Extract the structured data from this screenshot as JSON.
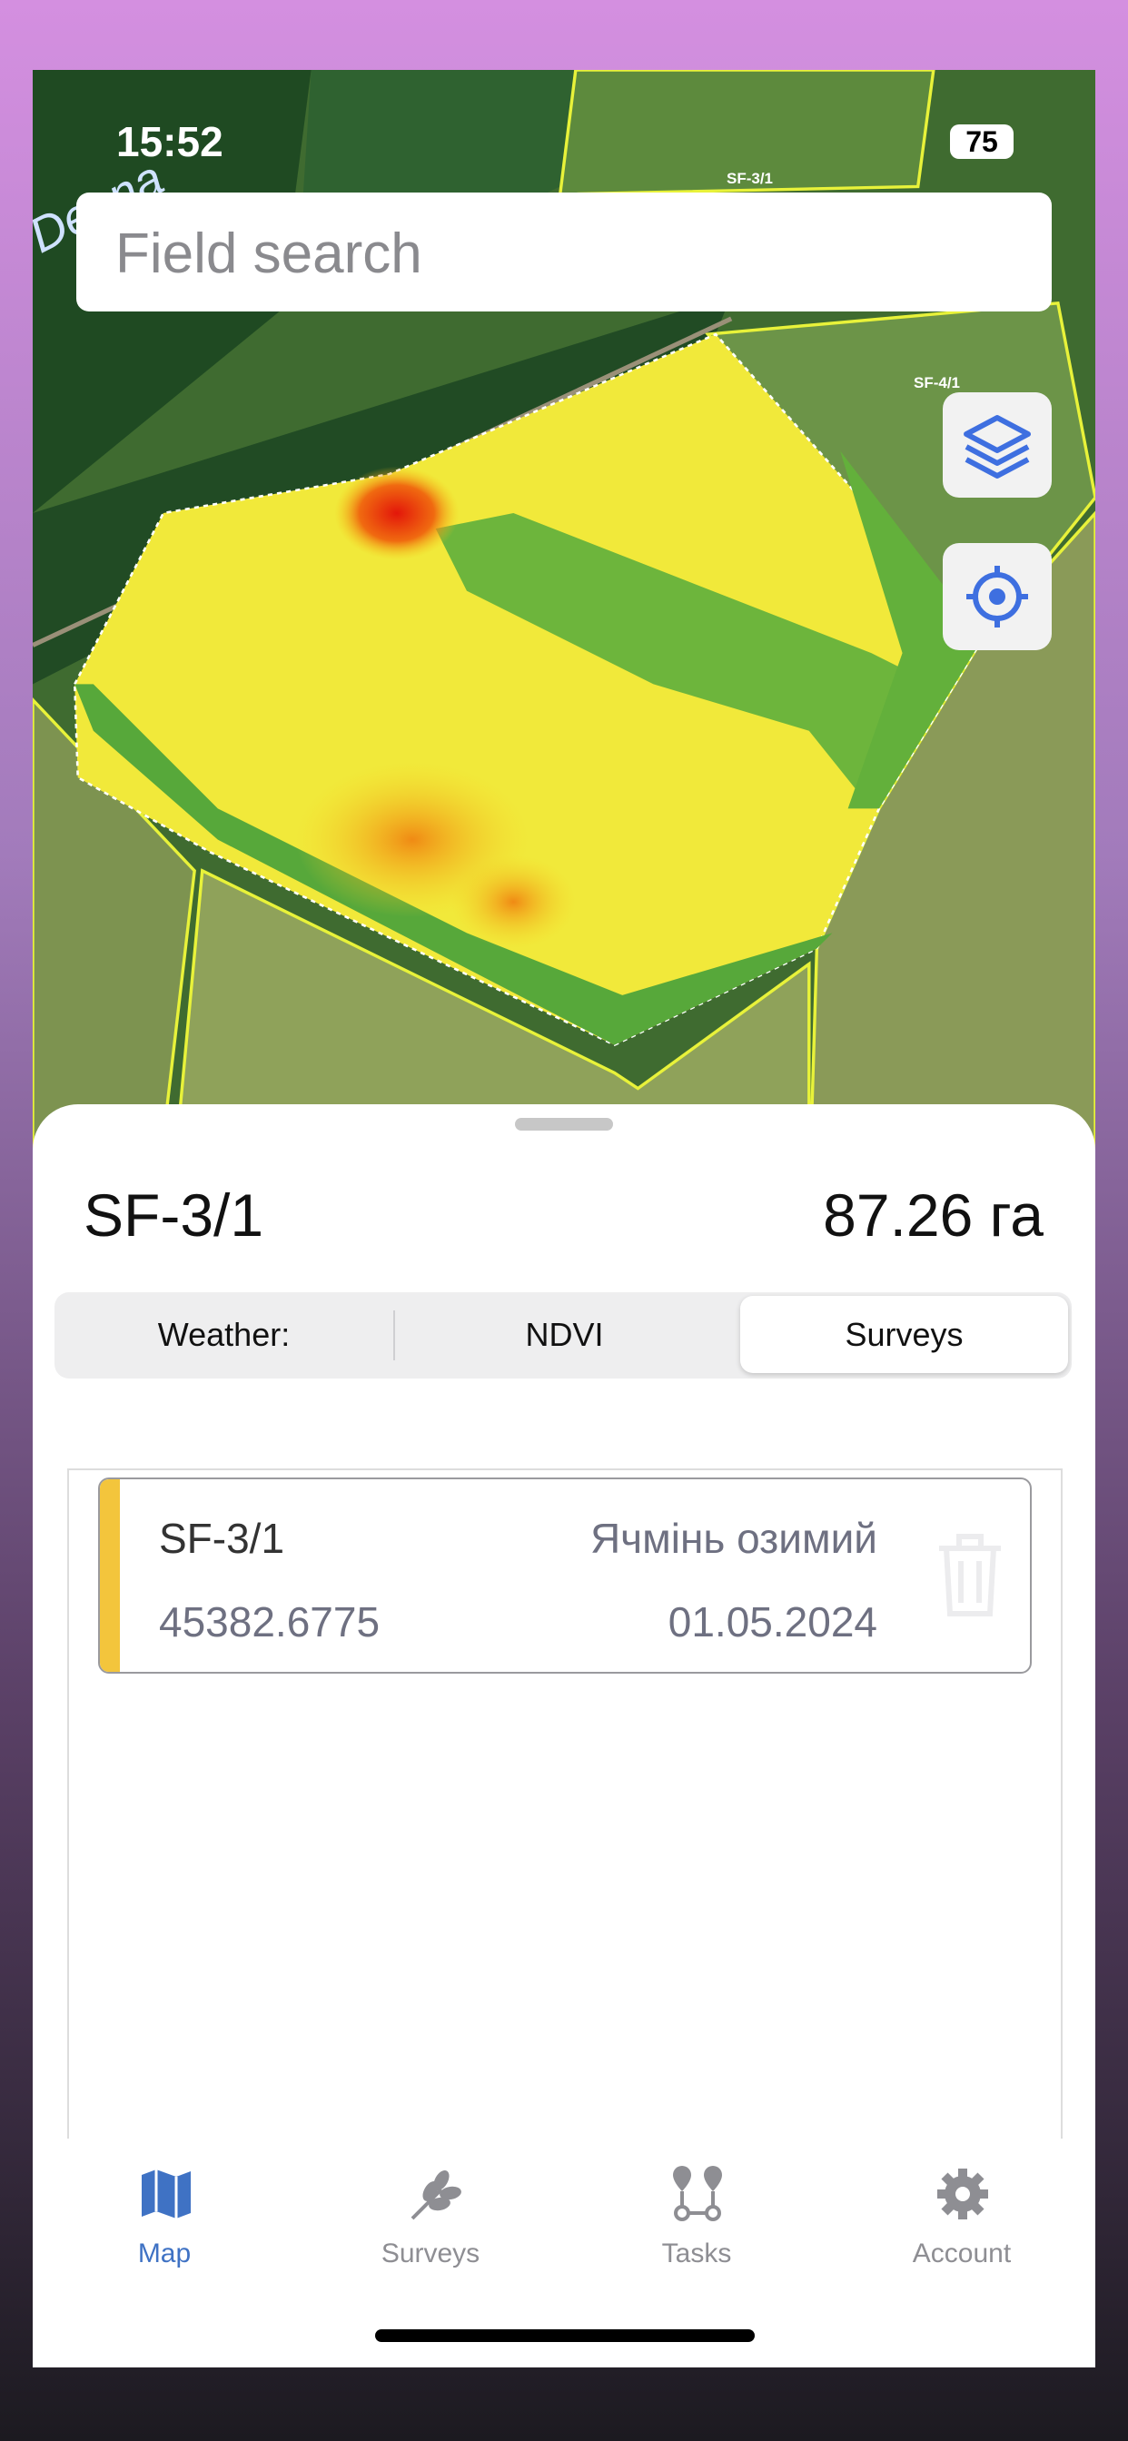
{
  "status_bar": {
    "time": "15:52",
    "battery": "75"
  },
  "map": {
    "labels": [
      "Desna",
      "SF-3/1",
      "SF-4/1"
    ]
  },
  "search": {
    "placeholder": "Field search"
  },
  "field": {
    "name": "SF-3/1",
    "area": "87.26 га"
  },
  "tabs": [
    "Weather:",
    "NDVI",
    "Surveys"
  ],
  "survey_card": {
    "field": "SF-3/1",
    "crop": "Ячмінь озимий",
    "number": "45382.6775",
    "date": "01.05.2024"
  },
  "nav": [
    "Map",
    "Surveys",
    "Tasks",
    "Account"
  ]
}
